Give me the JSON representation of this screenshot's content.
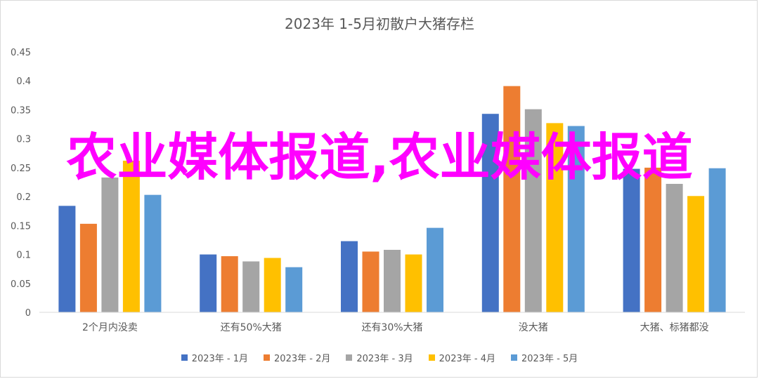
{
  "chart_data": {
    "type": "bar",
    "title": "2023年 1-5月初散户大猪存栏",
    "categories": [
      "2个月内没卖",
      "还有50%大猪",
      "还有30%大猪",
      "没大猪",
      "大猪、标猪都没"
    ],
    "ylim": [
      0,
      0.45
    ],
    "yticks": [
      "0",
      "0.05",
      "0.1",
      "0.15",
      "0.2",
      "0.25",
      "0.3",
      "0.35",
      "0.4",
      "0.45"
    ],
    "grid": false,
    "legend_position": "bottom",
    "series": [
      {
        "name": "2023年 - 1月",
        "color": "#4472c4",
        "values": [
          0.184,
          0.1,
          0.123,
          0.343,
          0.248
        ]
      },
      {
        "name": "2023年 - 2月",
        "color": "#ed7d31",
        "values": [
          0.153,
          0.097,
          0.105,
          0.391,
          0.25
        ]
      },
      {
        "name": "2023年 - 3月",
        "color": "#a5a5a5",
        "values": [
          0.233,
          0.088,
          0.108,
          0.351,
          0.222
        ]
      },
      {
        "name": "2023年 - 4月",
        "color": "#ffc000",
        "values": [
          0.262,
          0.094,
          0.1,
          0.327,
          0.201
        ]
      },
      {
        "name": "2023年 - 5月",
        "color": "#5b9bd5",
        "values": [
          0.203,
          0.078,
          0.146,
          0.322,
          0.249
        ]
      }
    ]
  },
  "overlay_text": "农业媒体报道,农业媒体报道"
}
